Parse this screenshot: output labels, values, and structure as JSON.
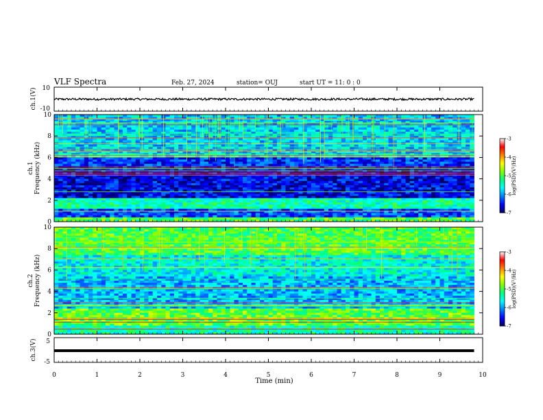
{
  "header": {
    "title": "VLF Spectra",
    "date": "Feb. 27, 2024",
    "station": "station= OUJ",
    "start_ut": "start  UT =   11: 0  : 0"
  },
  "colors": {
    "background": "#ffffff",
    "axis": "#000000",
    "colormap": [
      "#000060",
      "#0000ff",
      "#0080ff",
      "#00ffff",
      "#00ff80",
      "#80ff00",
      "#ffff00",
      "#ff8000",
      "#ff0000",
      "#ffffff"
    ]
  },
  "chart_data": [
    {
      "type": "line",
      "panel": "ch1-waveform",
      "ylabel": "ch.1(V)",
      "ylim": [
        -10,
        10
      ],
      "yticks": [
        "10",
        "-10"
      ],
      "xlim": [
        0,
        10
      ],
      "series": [
        {
          "values_summary": "noise around y = 0",
          "color": "#000000"
        }
      ]
    },
    {
      "type": "heatmap",
      "panel": "ch1-spectrogram",
      "ylabel_line1": "ch.1",
      "ylabel_line2": "Frequency (kHz)",
      "yticks": [
        "0",
        "2",
        "4",
        "6",
        "8",
        "10"
      ],
      "ylim": [
        0,
        10
      ],
      "xlim": [
        0,
        10
      ],
      "colorbar": {
        "label": "log(PSD)(V²/Hz)",
        "ticks": [
          "-3",
          "-4",
          "-5",
          "-6",
          "-7"
        ],
        "range": [
          -7,
          -3
        ]
      },
      "data_extent_min": 9.8,
      "bands": [
        {
          "from_khz": 0,
          "to_khz": 0.5,
          "level": -5.0
        },
        {
          "from_khz": 0.5,
          "to_khz": 1.2,
          "level": -6.3
        },
        {
          "from_khz": 1.2,
          "to_khz": 2.2,
          "level": -5.4
        },
        {
          "from_khz": 2.2,
          "to_khz": 5.0,
          "level": -6.6
        },
        {
          "from_khz": 5.0,
          "to_khz": 6.0,
          "level": -6.4
        },
        {
          "from_khz": 6.0,
          "to_khz": 10.0,
          "level": -5.8
        }
      ]
    },
    {
      "type": "heatmap",
      "panel": "ch2-spectrogram",
      "ylabel_line1": "ch.2",
      "ylabel_line2": "Frequency (kHz)",
      "yticks": [
        "0",
        "2",
        "4",
        "6",
        "8",
        "10"
      ],
      "ylim": [
        0,
        10
      ],
      "xlim": [
        0,
        10
      ],
      "colorbar": {
        "label": "log(PSD)(V²/Hz)",
        "ticks": [
          "-3",
          "-4",
          "-5",
          "-6",
          "-7"
        ],
        "range": [
          -7,
          -3
        ]
      },
      "data_extent_min": 9.8,
      "bands": [
        {
          "from_khz": 0,
          "to_khz": 0.8,
          "level": -5.4
        },
        {
          "from_khz": 0.8,
          "to_khz": 2.4,
          "level": -4.9
        },
        {
          "from_khz": 2.4,
          "to_khz": 5.5,
          "level": -5.9
        },
        {
          "from_khz": 5.5,
          "to_khz": 7.5,
          "level": -5.6
        },
        {
          "from_khz": 7.5,
          "to_khz": 10.0,
          "level": -5.0
        }
      ]
    },
    {
      "type": "line",
      "panel": "ch3-waveform",
      "ylabel": "ch.3(V)",
      "ylim": [
        -5,
        5
      ],
      "yticks": [
        "5",
        "-5"
      ],
      "xlim": [
        0,
        10
      ],
      "series": [
        {
          "values_summary": "flat near y = -1",
          "color": "#000000"
        }
      ]
    }
  ],
  "xaxis": {
    "label": "Time (min)",
    "ticks": [
      "0",
      "1",
      "2",
      "3",
      "4",
      "5",
      "6",
      "7",
      "8",
      "9",
      "10"
    ],
    "range": [
      0,
      10
    ]
  }
}
